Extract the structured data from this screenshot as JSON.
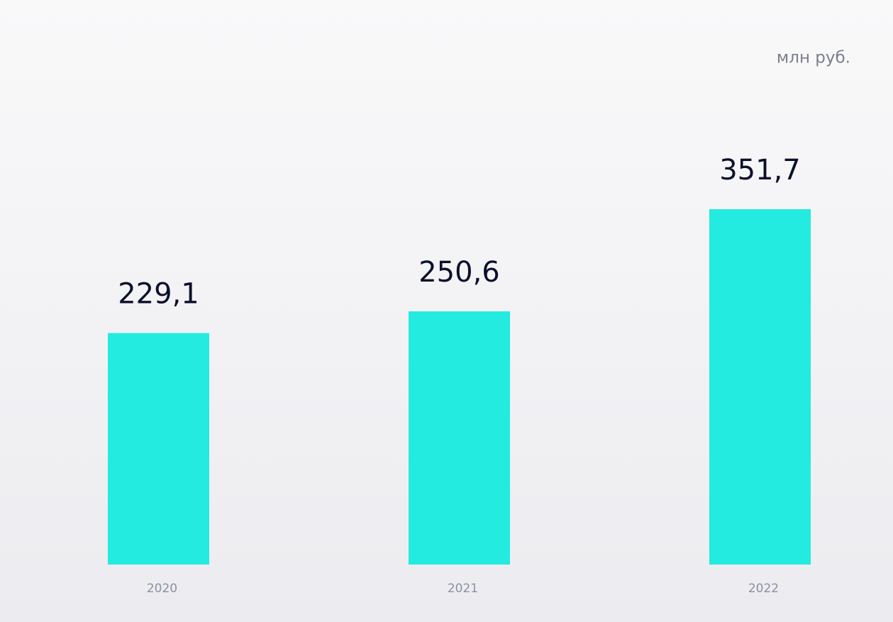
{
  "chart_data": {
    "type": "bar",
    "unit": "млн руб.",
    "categories": [
      "2020",
      "2021",
      "2022"
    ],
    "values": [
      229.1,
      250.6,
      351.7
    ],
    "value_labels": [
      "229,1",
      "250,6",
      "351,7"
    ],
    "color": "#23ebe0"
  }
}
